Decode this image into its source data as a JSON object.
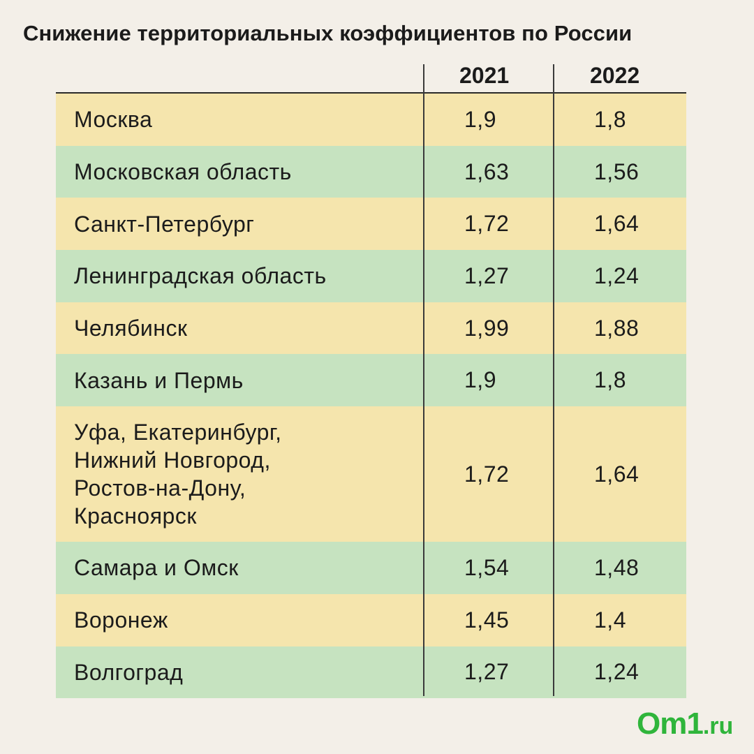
{
  "title": "Снижение территориальных коэффициентов по России",
  "chart_data": {
    "type": "table",
    "columns": [
      "",
      "2021",
      "2022"
    ],
    "rows": [
      {
        "name": "Москва",
        "v2021": "1,9",
        "v2022": "1,8"
      },
      {
        "name": "Московская область",
        "v2021": "1,63",
        "v2022": "1,56"
      },
      {
        "name": "Санкт-Петербург",
        "v2021": "1,72",
        "v2022": "1,64"
      },
      {
        "name": "Ленинградская область",
        "v2021": "1,27",
        "v2022": "1,24"
      },
      {
        "name": "Челябинск",
        "v2021": "1,99",
        "v2022": "1,88"
      },
      {
        "name": "Казань и Пермь",
        "v2021": "1,9",
        "v2022": "1,8"
      },
      {
        "name": "Уфа, Екатеринбург,\nНижний Новгород,\nРостов-на-Дону,\nКрасноярск",
        "v2021": "1,72",
        "v2022": "1,64"
      },
      {
        "name": "Самара и Омск",
        "v2021": "1,54",
        "v2022": "1,48"
      },
      {
        "name": "Воронеж",
        "v2021": "1,45",
        "v2022": "1,4"
      },
      {
        "name": "Волгоград",
        "v2021": "1,27",
        "v2022": "1,24"
      }
    ],
    "row_colors": [
      "#f5e5ad",
      "#c6e3c0"
    ]
  },
  "logo": {
    "main": "Om1",
    "suffix": ".ru",
    "color": "#2fb53b"
  }
}
